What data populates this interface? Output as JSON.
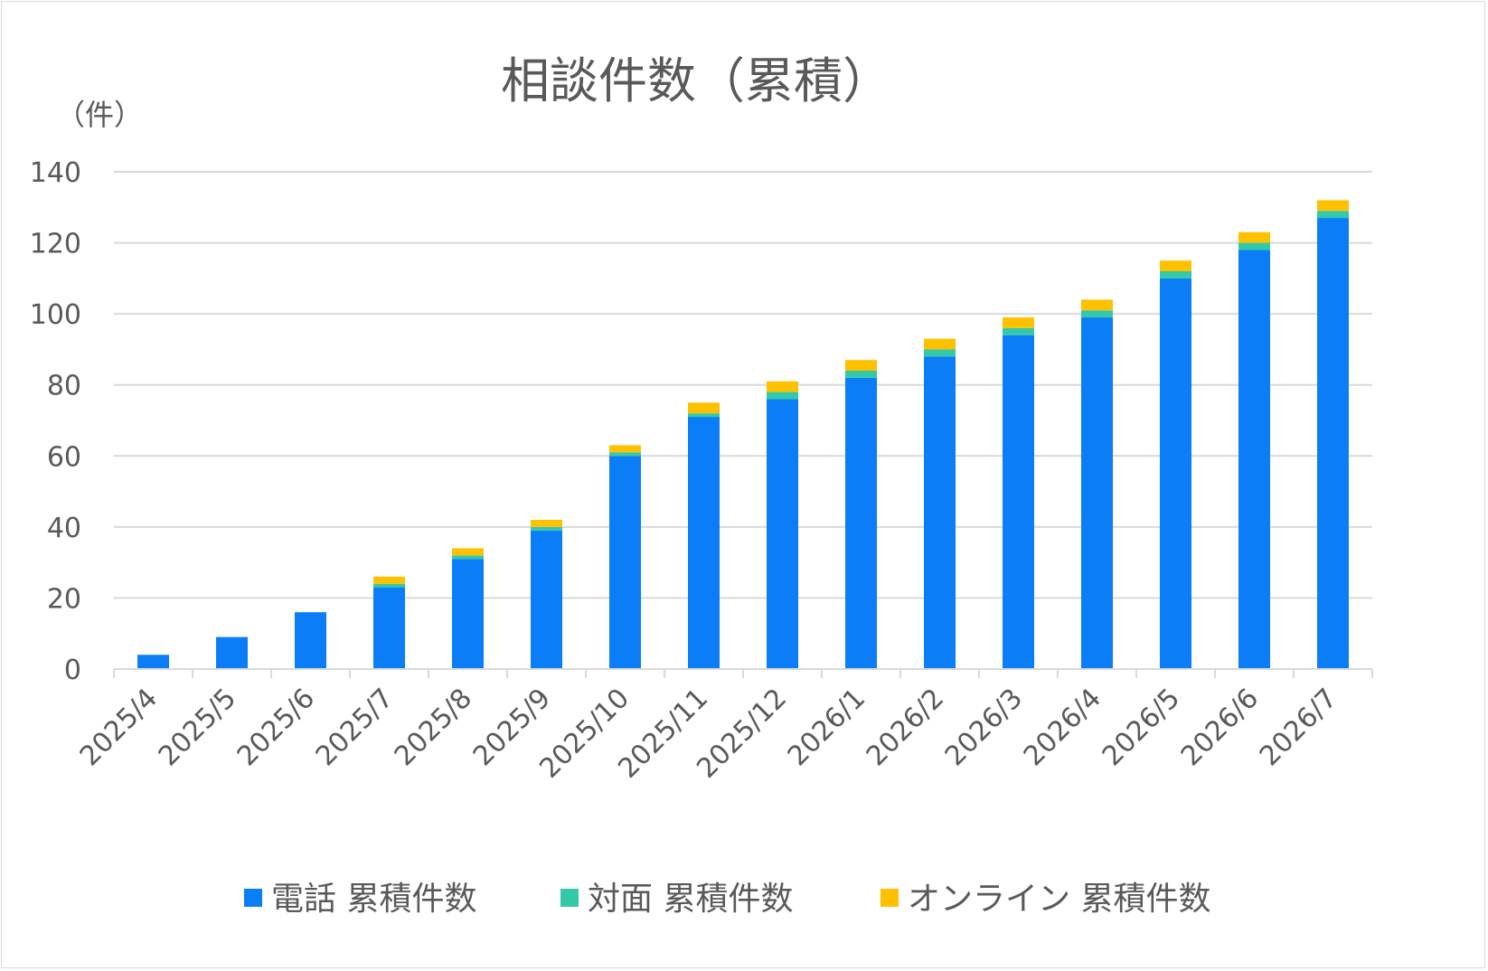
{
  "chart_data": {
    "type": "bar",
    "stacked": true,
    "title": "相談件数（累積）",
    "ylabel": "（件）",
    "xlabel": "",
    "ylim": [
      0,
      140
    ],
    "yticks": [
      0,
      20,
      40,
      60,
      80,
      100,
      120,
      140
    ],
    "grid": true,
    "legend_position": "bottom",
    "categories": [
      "2025/4",
      "2025/5",
      "2025/6",
      "2025/7",
      "2025/8",
      "2025/9",
      "2025/10",
      "2025/11",
      "2025/12",
      "2026/1",
      "2026/2",
      "2026/3",
      "2026/4",
      "2026/5",
      "2026/6",
      "2026/7"
    ],
    "series": [
      {
        "name": "電話 累積件数",
        "color": "#0a7df7",
        "values": [
          4,
          9,
          16,
          23,
          31,
          39,
          60,
          71,
          76,
          82,
          88,
          94,
          99,
          110,
          118,
          127
        ]
      },
      {
        "name": "対面 累積件数",
        "color": "#33c9a8",
        "values": [
          0,
          0,
          0,
          1,
          1,
          1,
          1,
          1,
          2,
          2,
          2,
          2,
          2,
          2,
          2,
          2
        ]
      },
      {
        "name": "オンライン 累積件数",
        "color": "#ffc000",
        "values": [
          0,
          0,
          0,
          2,
          2,
          2,
          2,
          3,
          3,
          3,
          3,
          3,
          3,
          3,
          3,
          3
        ]
      }
    ]
  }
}
